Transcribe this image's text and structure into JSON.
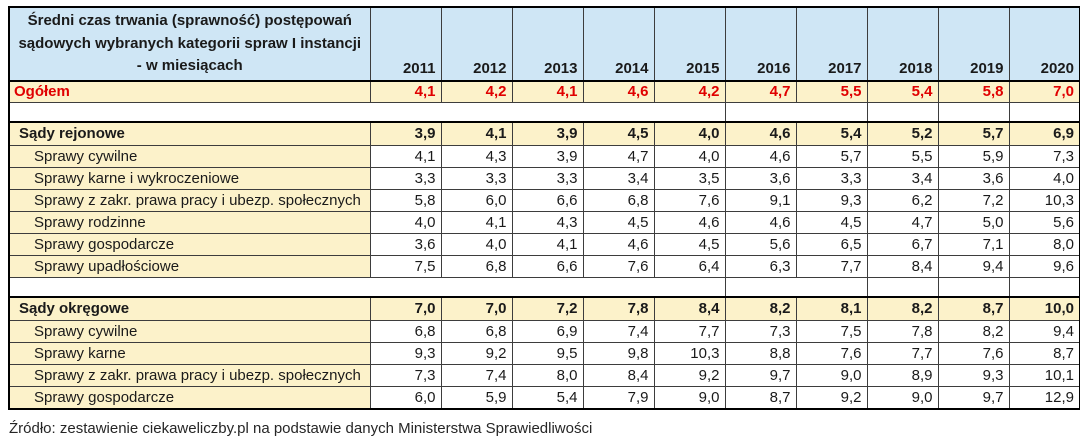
{
  "chart_data": {
    "type": "table",
    "title": "Średni czas trwania (sprawność) postępowań\nsądowych wybranych kategorii spraw I instancji\n- w miesiącach",
    "columns": [
      "2011",
      "2012",
      "2013",
      "2014",
      "2015",
      "2016",
      "2017",
      "2018",
      "2019",
      "2020"
    ],
    "rows": [
      {
        "label": "Ogółem",
        "style": "total",
        "values": [
          "4,1",
          "4,2",
          "4,1",
          "4,6",
          "4,2",
          "4,7",
          "5,5",
          "5,4",
          "5,8",
          "7,0"
        ]
      },
      {
        "label": "",
        "style": "spacer",
        "values": []
      },
      {
        "label": "Sądy rejonowe",
        "style": "section",
        "values": [
          "3,9",
          "4,1",
          "3,9",
          "4,5",
          "4,0",
          "4,6",
          "5,4",
          "5,2",
          "5,7",
          "6,9"
        ]
      },
      {
        "label": "Sprawy cywilne",
        "style": "sub",
        "values": [
          "4,1",
          "4,3",
          "3,9",
          "4,7",
          "4,0",
          "4,6",
          "5,7",
          "5,5",
          "5,9",
          "7,3"
        ]
      },
      {
        "label": "Sprawy karne i wykroczeniowe",
        "style": "sub",
        "values": [
          "3,3",
          "3,3",
          "3,3",
          "3,4",
          "3,5",
          "3,6",
          "3,3",
          "3,4",
          "3,6",
          "4,0"
        ]
      },
      {
        "label": "Sprawy z zakr. prawa pracy i ubezp. społecznych",
        "style": "sub",
        "values": [
          "5,8",
          "6,0",
          "6,6",
          "6,8",
          "7,6",
          "9,1",
          "9,3",
          "6,2",
          "7,2",
          "10,3"
        ]
      },
      {
        "label": "Sprawy rodzinne",
        "style": "sub",
        "values": [
          "4,0",
          "4,1",
          "4,3",
          "4,5",
          "4,6",
          "4,6",
          "4,5",
          "4,7",
          "5,0",
          "5,6"
        ]
      },
      {
        "label": "Sprawy gospodarcze",
        "style": "sub",
        "values": [
          "3,6",
          "4,0",
          "4,1",
          "4,6",
          "4,5",
          "5,6",
          "6,5",
          "6,7",
          "7,1",
          "8,0"
        ]
      },
      {
        "label": "Sprawy upadłościowe",
        "style": "sub",
        "values": [
          "7,5",
          "6,8",
          "6,6",
          "7,6",
          "6,4",
          "6,3",
          "7,7",
          "8,4",
          "9,4",
          "9,6"
        ]
      },
      {
        "label": "",
        "style": "spacer",
        "values": []
      },
      {
        "label": "Sądy okręgowe",
        "style": "section",
        "values": [
          "7,0",
          "7,0",
          "7,2",
          "7,8",
          "8,4",
          "8,2",
          "8,1",
          "8,2",
          "8,7",
          "10,0"
        ]
      },
      {
        "label": "Sprawy cywilne",
        "style": "sub",
        "values": [
          "6,8",
          "6,8",
          "6,9",
          "7,4",
          "7,7",
          "7,3",
          "7,5",
          "7,8",
          "8,2",
          "9,4"
        ]
      },
      {
        "label": "Sprawy karne",
        "style": "sub",
        "values": [
          "9,3",
          "9,2",
          "9,5",
          "9,8",
          "10,3",
          "8,8",
          "7,6",
          "7,7",
          "7,6",
          "8,7"
        ]
      },
      {
        "label": "Sprawy z zakr. prawa pracy i ubezp. społecznych",
        "style": "sub",
        "values": [
          "7,3",
          "7,4",
          "8,0",
          "8,4",
          "9,2",
          "9,7",
          "9,0",
          "8,9",
          "9,3",
          "10,1"
        ]
      },
      {
        "label": "Sprawy gospodarcze",
        "style": "sub",
        "values": [
          "6,0",
          "5,9",
          "5,4",
          "7,9",
          "9,0",
          "8,7",
          "9,2",
          "9,0",
          "9,7",
          "12,9"
        ]
      }
    ],
    "source": "Źródło: zestawienie ciekaweliczby.pl na podstawie danych Ministerstwa Sprawiedliwości"
  },
  "colors": {
    "header_bg": "#CFE6F5",
    "accent_yellow": "#FCF2CA",
    "total_red": "#E00000",
    "grid": "#3D3D3D",
    "heavy": "#000000",
    "text": "#1A1A1A"
  }
}
